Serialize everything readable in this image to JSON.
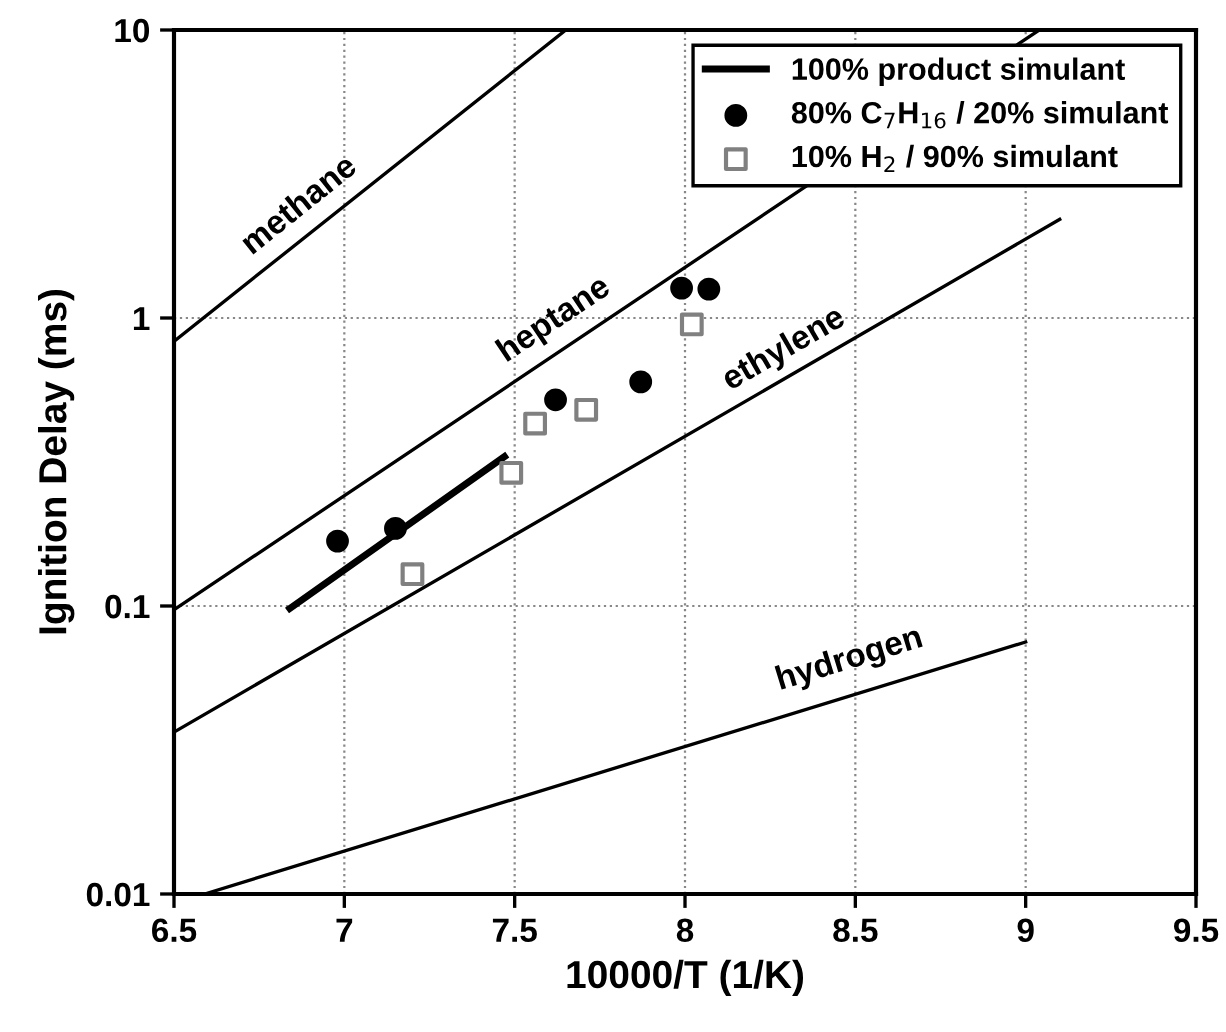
{
  "chart_data": {
    "type": "line",
    "xlabel": "10000/T (1/K)",
    "ylabel": "Ignition Delay (ms)",
    "log": "y",
    "xlim": [
      6.5,
      9.5
    ],
    "xticks": [
      6.5,
      7,
      7.5,
      8,
      8.5,
      9,
      9.5
    ],
    "ylim": [
      0.01,
      10
    ],
    "yticks": [
      0.01,
      0.1,
      1,
      10
    ],
    "grid": true,
    "legend": "top right",
    "series": [
      {
        "color": "#000000",
        "marker": "none",
        "x": [
          6.5,
          7.65
        ],
        "values": [
          0.83,
          10
        ]
      },
      {
        "color": "#000000",
        "marker": "none",
        "x": [
          6.5,
          9.04
        ],
        "values": [
          0.097,
          10
        ]
      },
      {
        "color": "#000000",
        "marker": "none",
        "x": [
          6.5,
          9.1
        ],
        "values": [
          0.0365,
          2.2
        ]
      },
      {
        "color": "#000000",
        "marker": "none",
        "x": [
          6.59,
          9.0
        ],
        "values": [
          0.01,
          0.075
        ]
      },
      {
        "name": "100% product simulant",
        "color": "#000000",
        "marker": "none",
        "x": [
          6.84,
          7.47
        ],
        "values": [
          0.098,
          0.33
        ]
      },
      {
        "type": "scatter",
        "name": "80% C$_{7}$H$_{16}$ / 20% simulant",
        "color": "#000000",
        "marker": "circle",
        "x": [
          6.98,
          7.15,
          7.62,
          7.87,
          7.99,
          8.07
        ],
        "values": [
          0.168,
          0.186,
          0.52,
          0.6,
          1.27,
          1.26
        ]
      },
      {
        "type": "scatter",
        "name": "10% H$_{2}$ / 90% simulant",
        "color": "#808080",
        "marker": "square",
        "x": [
          7.2,
          7.49,
          7.56,
          7.71,
          8.02
        ],
        "values": [
          0.129,
          0.29,
          0.43,
          0.48,
          0.95
        ]
      }
    ],
    "annotations": [
      "methane",
      "heptane",
      "ethylene",
      "hydrogen"
    ]
  }
}
